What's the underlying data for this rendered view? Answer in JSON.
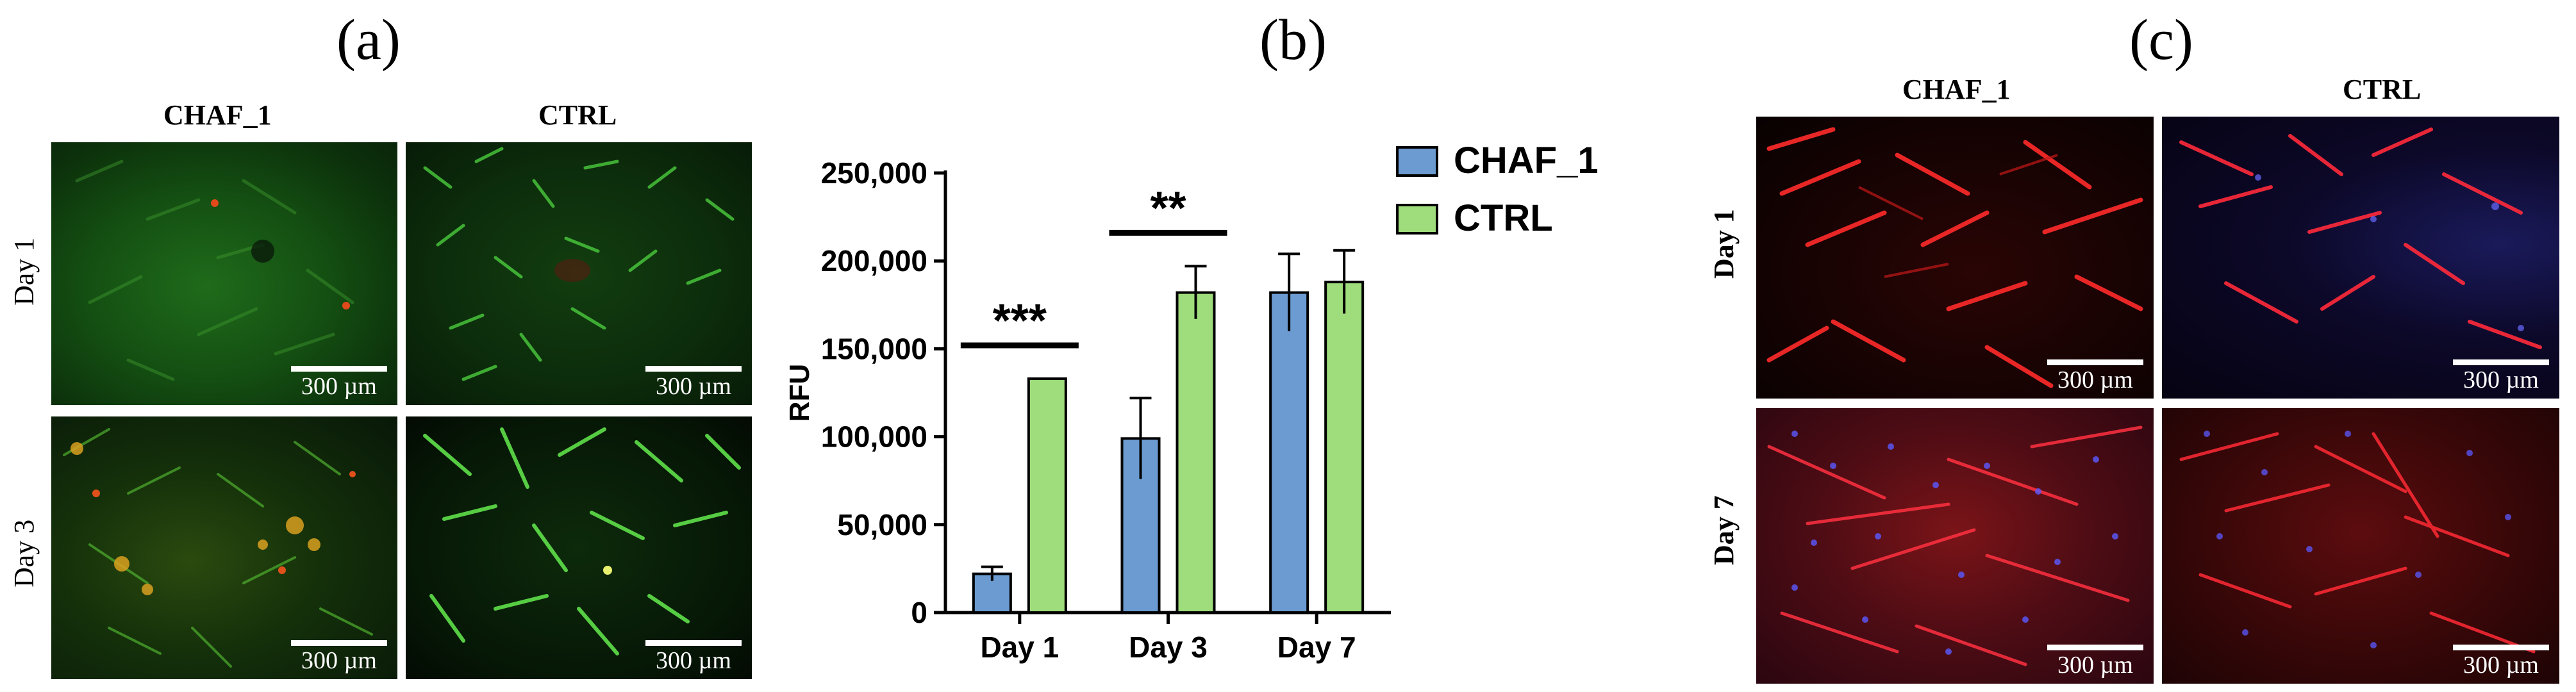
{
  "panels": {
    "a": {
      "letter": "(a)",
      "col_labels": [
        "CHAF_1",
        "CTRL"
      ],
      "row_labels": [
        "Day 1",
        "Day 3"
      ]
    },
    "b": {
      "letter": "(b)"
    },
    "c": {
      "letter": "(c)",
      "col_labels": [
        "CHAF_1",
        "CTRL"
      ],
      "row_labels": [
        "Day 1",
        "Day 7"
      ]
    }
  },
  "scale_bar_label": "300 µm",
  "colors": {
    "chaf1_bar": "#6b9bd1",
    "ctrl_bar": "#9fdc7c",
    "bar_outline": "#000000",
    "scale_bar": "#ffffff"
  },
  "chart_data": {
    "type": "bar",
    "title": "",
    "xlabel": "",
    "ylabel": "RFU",
    "ylim": [
      0,
      250000
    ],
    "yticks": [
      0,
      50000,
      100000,
      150000,
      200000,
      250000
    ],
    "ytick_labels": [
      "0",
      "50,000",
      "100,000",
      "150,000",
      "200,000",
      "250,000"
    ],
    "categories": [
      "Day 1",
      "Day 3",
      "Day 7"
    ],
    "series": [
      {
        "name": "CHAF_1",
        "values": [
          22000,
          99000,
          182000
        ],
        "errors": [
          4000,
          23000,
          22000
        ]
      },
      {
        "name": "CTRL",
        "values": [
          133000,
          182000,
          188000
        ],
        "errors": [
          0,
          15000,
          18000
        ]
      }
    ],
    "significance": [
      {
        "category": "Day 1",
        "label": "***"
      },
      {
        "category": "Day 3",
        "label": "**"
      }
    ],
    "legend_position": "top-right"
  }
}
